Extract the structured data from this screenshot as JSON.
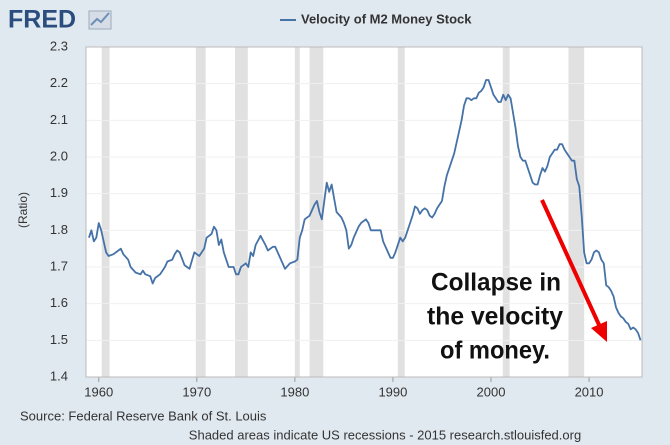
{
  "chart_data": {
    "type": "line",
    "logo": "FRED",
    "y_label": "(Ratio)",
    "source": "Source: Federal Reserve Bank of St. Louis",
    "note": "Shaded areas indicate US recessions - 2015 research.stlouisfed.org",
    "annotation": [
      "Collapse in",
      "the velocity",
      "of money."
    ],
    "grid": true,
    "xlim": [
      1958.7,
      2015.4
    ],
    "xticks": [
      1960,
      1970,
      1980,
      1990,
      2000,
      2010
    ],
    "ylim": [
      1.4,
      2.3
    ],
    "yticks": [
      1.4,
      1.5,
      1.6,
      1.7,
      1.8,
      1.9,
      {
        "value": 2,
        "label": "2.0"
      },
      2.1,
      2.2,
      2.3
    ],
    "recessions": [
      [
        1960.3,
        1961.1
      ],
      [
        1969.9,
        1970.9
      ],
      [
        1973.9,
        1975.2
      ],
      [
        1980.0,
        1980.5
      ],
      [
        1981.5,
        1982.9
      ],
      [
        1990.5,
        1991.2
      ],
      [
        2001.2,
        2001.9
      ],
      [
        2007.9,
        2009.5
      ]
    ],
    "x": [
      1959.0,
      1959.25,
      1959.5,
      1959.75,
      1960.0,
      1960.25,
      1960.5,
      1960.75,
      1961.0,
      1961.5,
      1962.0,
      1962.25,
      1962.5,
      1963.0,
      1963.25,
      1963.75,
      1964.25,
      1964.5,
      1964.75,
      1965.25,
      1965.5,
      1965.75,
      1966.25,
      1966.75,
      1967.0,
      1967.5,
      1967.75,
      1968.0,
      1968.25,
      1968.75,
      1969.0,
      1969.25,
      1969.75,
      1970.25,
      1970.75,
      1971.0,
      1971.5,
      1971.75,
      1972.0,
      1972.25,
      1972.5,
      1972.75,
      1973.0,
      1973.25,
      1973.75,
      1974.0,
      1974.25,
      1974.5,
      1975.0,
      1975.25,
      1975.5,
      1975.75,
      1976.0,
      1976.5,
      1977.0,
      1977.25,
      1977.75,
      1978.0,
      1978.25,
      1978.75,
      1979.0,
      1979.5,
      1980.0,
      1980.25,
      1980.5,
      1980.75,
      1981.0,
      1981.5,
      1982.0,
      1982.25,
      1982.5,
      1982.75,
      1983.0,
      1983.25,
      1983.5,
      1983.75,
      1984.25,
      1984.75,
      1985.0,
      1985.25,
      1985.5,
      1985.75,
      1986.0,
      1986.5,
      1986.75,
      1987.25,
      1987.5,
      1987.75,
      1988.75,
      1989.0,
      1989.5,
      1989.75,
      1990.0,
      1990.25,
      1990.75,
      1991.0,
      1991.25,
      1991.75,
      1992.0,
      1992.25,
      1992.5,
      1992.75,
      1993.0,
      1993.25,
      1993.5,
      1993.75,
      1994.0,
      1994.25,
      1994.5,
      1994.75,
      1995.0,
      1995.25,
      1995.5,
      1995.75,
      1996.0,
      1996.25,
      1996.5,
      1996.75,
      1997.0,
      1997.25,
      1997.5,
      1997.75,
      1998.0,
      1998.25,
      1998.5,
      1998.75,
      1999.0,
      1999.25,
      1999.5,
      1999.75,
      2000.0,
      2000.25,
      2000.5,
      2000.75,
      2001.0,
      2001.25,
      2001.5,
      2001.75,
      2002.0,
      2002.25,
      2002.5,
      2002.75,
      2003.0,
      2003.25,
      2003.5,
      2003.75,
      2004.0,
      2004.25,
      2004.5,
      2004.75,
      2005.0,
      2005.25,
      2005.5,
      2005.75,
      2006.0,
      2006.25,
      2006.5,
      2006.75,
      2007.0,
      2007.25,
      2007.5,
      2007.75,
      2008.0,
      2008.25,
      2008.5,
      2008.75,
      2009.0,
      2009.25,
      2009.5,
      2009.75,
      2010.0,
      2010.25,
      2010.5,
      2010.75,
      2011.0,
      2011.25,
      2011.5,
      2011.75,
      2012.0,
      2012.25,
      2012.5,
      2012.75,
      2013.0,
      2013.25,
      2013.5,
      2013.75,
      2014.0,
      2014.25,
      2014.5,
      2014.75,
      2015.0,
      2015.25
    ],
    "series": [
      {
        "name": "Velocity of M2 Money Stock",
        "color": "#4572a7",
        "values": [
          1.78,
          1.8,
          1.77,
          1.78,
          1.82,
          1.8,
          1.77,
          1.74,
          1.73,
          1.735,
          1.745,
          1.75,
          1.735,
          1.72,
          1.7,
          1.685,
          1.68,
          1.69,
          1.68,
          1.675,
          1.655,
          1.67,
          1.68,
          1.7,
          1.715,
          1.72,
          1.735,
          1.745,
          1.74,
          1.705,
          1.7,
          1.695,
          1.74,
          1.73,
          1.75,
          1.78,
          1.79,
          1.81,
          1.8,
          1.76,
          1.775,
          1.74,
          1.72,
          1.7,
          1.7,
          1.68,
          1.68,
          1.7,
          1.71,
          1.7,
          1.74,
          1.73,
          1.76,
          1.785,
          1.76,
          1.745,
          1.755,
          1.755,
          1.74,
          1.71,
          1.695,
          1.71,
          1.715,
          1.72,
          1.78,
          1.8,
          1.83,
          1.84,
          1.87,
          1.88,
          1.85,
          1.83,
          1.88,
          1.93,
          1.905,
          1.925,
          1.85,
          1.835,
          1.82,
          1.8,
          1.75,
          1.76,
          1.78,
          1.81,
          1.82,
          1.83,
          1.82,
          1.8,
          1.8,
          1.77,
          1.74,
          1.725,
          1.725,
          1.74,
          1.78,
          1.77,
          1.78,
          1.82,
          1.84,
          1.865,
          1.86,
          1.845,
          1.855,
          1.86,
          1.855,
          1.84,
          1.835,
          1.845,
          1.86,
          1.87,
          1.88,
          1.92,
          1.95,
          1.97,
          1.99,
          2.01,
          2.04,
          2.07,
          2.1,
          2.14,
          2.16,
          2.16,
          2.155,
          2.16,
          2.16,
          2.175,
          2.18,
          2.19,
          2.21,
          2.21,
          2.19,
          2.17,
          2.16,
          2.15,
          2.15,
          2.17,
          2.155,
          2.17,
          2.16,
          2.12,
          2.08,
          2.03,
          2.0,
          1.99,
          1.99,
          1.97,
          1.95,
          1.93,
          1.925,
          1.925,
          1.95,
          1.97,
          1.96,
          1.975,
          2.0,
          2.01,
          2.02,
          2.02,
          2.035,
          2.035,
          2.02,
          2.01,
          2.0,
          1.99,
          1.99,
          1.94,
          1.92,
          1.84,
          1.74,
          1.71,
          1.71,
          1.72,
          1.74,
          1.745,
          1.74,
          1.72,
          1.71,
          1.65,
          1.645,
          1.635,
          1.62,
          1.59,
          1.575,
          1.565,
          1.56,
          1.55,
          1.545,
          1.53,
          1.535,
          1.53,
          1.52,
          1.5
        ]
      }
    ]
  }
}
